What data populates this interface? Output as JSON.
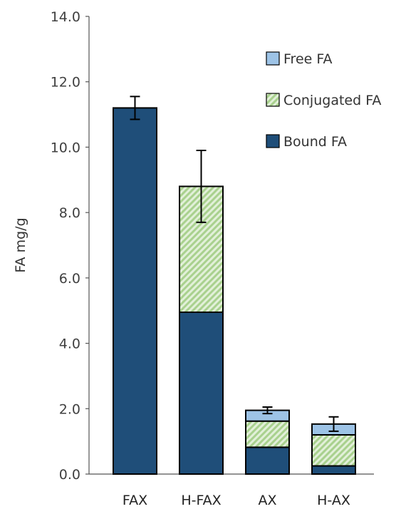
{
  "chart_data": {
    "type": "bar",
    "stacked": true,
    "categories": [
      "FAX",
      "H-FAX",
      "AX",
      "H-AX"
    ],
    "series": [
      {
        "name": "Bound FA",
        "values": [
          11.2,
          4.95,
          0.82,
          0.25
        ],
        "color": "#1f4e79",
        "pattern": "solid"
      },
      {
        "name": "Conjugated FA",
        "values": [
          0.0,
          3.85,
          0.8,
          0.95
        ],
        "color": "#a9d18e",
        "pattern": "diagonal-hatch"
      },
      {
        "name": "Free FA",
        "values": [
          0.0,
          0.0,
          0.33,
          0.33
        ],
        "color": "#9dc3e6",
        "pattern": "solid"
      }
    ],
    "totals": [
      11.2,
      8.8,
      1.95,
      1.53
    ],
    "error_bars": [
      0.35,
      1.1,
      0.1,
      0.22
    ],
    "ylabel": "FA mg/g",
    "xlabel": "",
    "title": "",
    "ylim": [
      0,
      14
    ],
    "yticks": [
      0,
      2,
      4,
      6,
      8,
      10,
      12,
      14
    ],
    "ytick_labels": [
      "0.0",
      "2.0",
      "4.0",
      "6.0",
      "8.0",
      "10.0",
      "12.0",
      "14.0"
    ],
    "grid": false,
    "legend": {
      "position": "top-right",
      "order": [
        "Free FA",
        "Conjugated FA",
        "Bound FA"
      ]
    }
  }
}
